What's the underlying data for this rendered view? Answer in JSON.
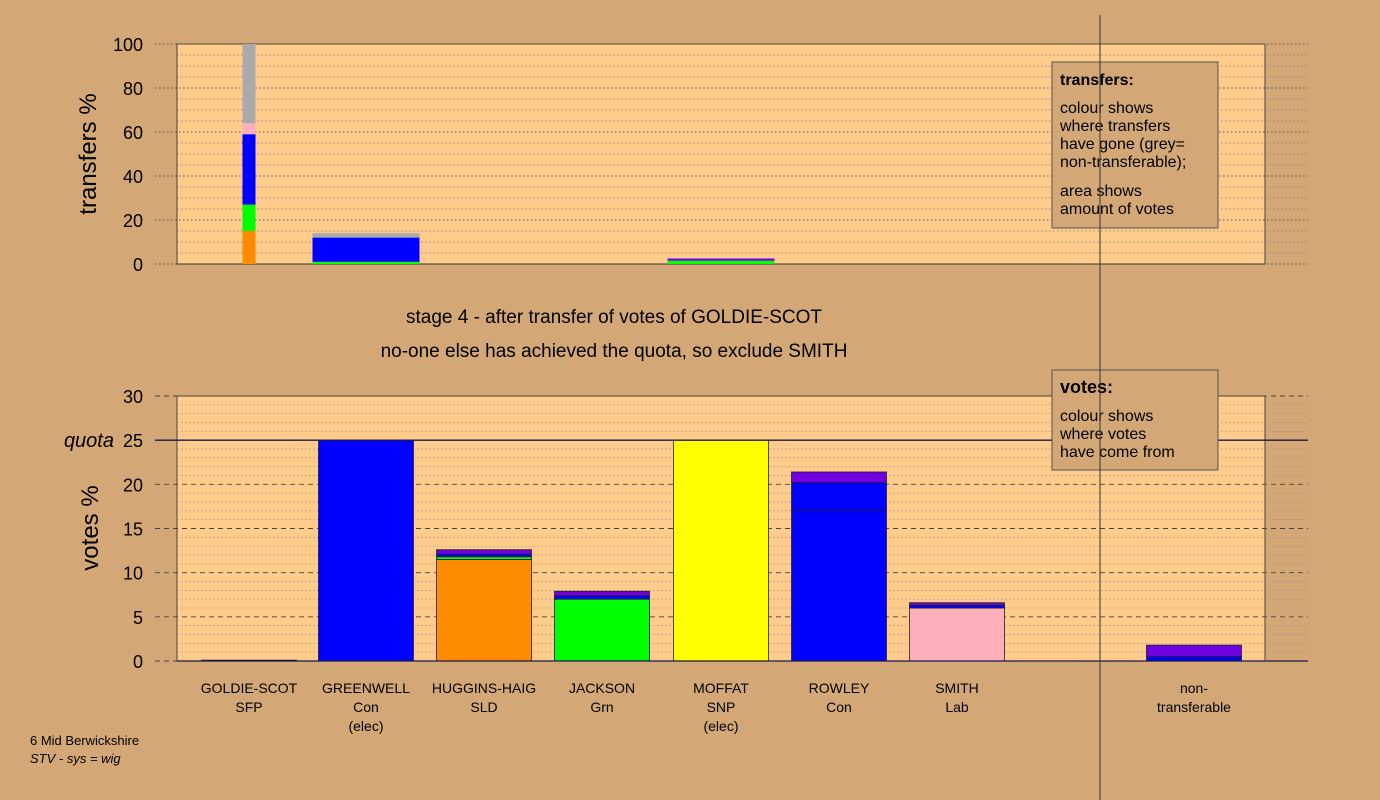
{
  "chart_data": [
    {
      "type": "bar",
      "stacked": true,
      "ylabel": "transfers %",
      "ylim": [
        0,
        100
      ],
      "yticks": [
        0,
        20,
        40,
        60,
        80,
        100
      ],
      "grid": "dotted",
      "bars": [
        {
          "column": 0,
          "narrow": true,
          "segments": [
            {
              "value": 15,
              "color": "#ff8c00"
            },
            {
              "value": 12,
              "color": "#00ff00"
            },
            {
              "value": 32,
              "color": "#0000ff"
            },
            {
              "value": 5,
              "color": "#ffaebc"
            },
            {
              "value": 36,
              "color": "#aaaaaa"
            }
          ]
        },
        {
          "column": 1,
          "segments": [
            {
              "value": 1,
              "color": "#00ff00"
            },
            {
              "value": 11,
              "color": "#0000ff"
            },
            {
              "value": 2,
              "color": "#aaaaaa"
            }
          ]
        },
        {
          "column": 4,
          "segments": [
            {
              "value": 1.5,
              "color": "#00ff00"
            },
            {
              "value": 1,
              "color": "#7000e0"
            }
          ]
        }
      ]
    },
    {
      "type": "bar",
      "stacked": true,
      "ylabel": "votes %",
      "ylim": [
        0,
        30
      ],
      "yticks": [
        0,
        5,
        10,
        15,
        20,
        25,
        30
      ],
      "quota": 25,
      "quota_label": "quota",
      "grid": "dashed",
      "categories": [
        {
          "name": "GOLDIE-SCOT",
          "party": "SFP",
          "note": ""
        },
        {
          "name": "GREENWELL",
          "party": "Con",
          "note": "(elec)"
        },
        {
          "name": "HUGGINS-HAIG",
          "party": "SLD",
          "note": ""
        },
        {
          "name": "JACKSON",
          "party": "Grn",
          "note": ""
        },
        {
          "name": "MOFFAT",
          "party": "SNP",
          "note": "(elec)"
        },
        {
          "name": "ROWLEY",
          "party": "Con",
          "note": ""
        },
        {
          "name": "SMITH",
          "party": "Lab",
          "note": ""
        },
        {
          "name": "",
          "party": "",
          "note": ""
        },
        {
          "name": "non-",
          "party": "transferable",
          "note": ""
        }
      ],
      "bars": [
        {
          "column": 0,
          "segments": [
            {
              "value": 0.1,
              "color": "#ffaebc"
            }
          ]
        },
        {
          "column": 1,
          "segments": [
            {
              "value": 25,
              "color": "#0000ff"
            }
          ]
        },
        {
          "column": 2,
          "segments": [
            {
              "value": 11.5,
              "color": "#ff8c00"
            },
            {
              "value": 0.3,
              "color": "#00ff00"
            },
            {
              "value": 0.3,
              "color": "#0000ff"
            },
            {
              "value": 0.5,
              "color": "#7000e0"
            }
          ]
        },
        {
          "column": 3,
          "segments": [
            {
              "value": 7,
              "color": "#00ff00"
            },
            {
              "value": 0.4,
              "color": "#0000ff"
            },
            {
              "value": 0.5,
              "color": "#7000e0"
            }
          ]
        },
        {
          "column": 4,
          "segments": [
            {
              "value": 25,
              "color": "#ffff00"
            }
          ]
        },
        {
          "column": 5,
          "segments": [
            {
              "value": 17.1,
              "color": "#0000ff"
            },
            {
              "value": 3.1,
              "color": "#0000ff"
            },
            {
              "value": 1.2,
              "color": "#7000e0"
            }
          ]
        },
        {
          "column": 6,
          "segments": [
            {
              "value": 6,
              "color": "#ffaebc"
            },
            {
              "value": 0.3,
              "color": "#0000ff"
            },
            {
              "value": 0.3,
              "color": "#7000e0"
            }
          ]
        },
        {
          "column": 8,
          "segments": [
            {
              "value": 0.5,
              "color": "#0000ff"
            },
            {
              "value": 1.3,
              "color": "#7000e0"
            }
          ]
        }
      ]
    }
  ],
  "stage_line1": "stage 4 - after transfer of votes of GOLDIE-SCOT",
  "stage_line2": "no-one else has achieved the quota, so exclude SMITH",
  "transfers_legend": {
    "title": "transfers:",
    "lines1": [
      "colour shows",
      "where transfers",
      "have gone (grey=",
      "non-transferable);"
    ],
    "lines2": [
      "area shows",
      "amount of votes"
    ]
  },
  "votes_legend": {
    "title": "votes:",
    "lines1": [
      "colour shows",
      "where votes",
      "have come from"
    ]
  },
  "footer": {
    "line1": "6 Mid Berwickshire",
    "line2": "STV - sys = wig"
  },
  "colors": {
    "background": "#d4a876",
    "plot_area": "#ffcc8c",
    "legend_box": "#d4a876"
  }
}
